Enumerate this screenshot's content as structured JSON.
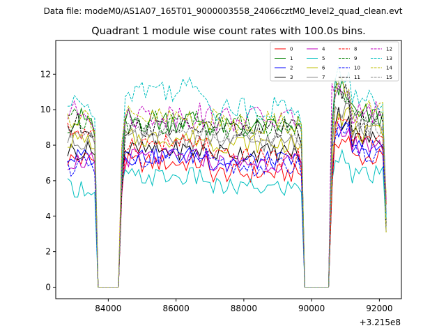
{
  "header": {
    "suptitle": "Data file: modeM0/AS1A07_165T01_9000003558_24066cztM0_level2_quad_clean.evt",
    "title": "Quadrant 1 module wise count rates with 100.0s bins."
  },
  "chart_data": {
    "type": "line",
    "title": "Quadrant 1 module wise count rates with 100.0s bins.",
    "xlabel": "",
    "ylabel": "",
    "x_offset_label": "+3.215e8",
    "x_offset": 321500000,
    "xlim": [
      82450,
      92650
    ],
    "ylim": [
      -0.65,
      13.9
    ],
    "xticks": [
      84000,
      86000,
      88000,
      90000,
      92000
    ],
    "xtick_labels": [
      "84000",
      "86000",
      "88000",
      "90000",
      "92000"
    ],
    "yticks": [
      0,
      2,
      4,
      6,
      8,
      10,
      12
    ],
    "ytick_labels": [
      "0",
      "2",
      "4",
      "6",
      "8",
      "10",
      "12"
    ],
    "grid": false,
    "legend_position": "top-right",
    "legend_columns": 4,
    "time_range": [
      82800,
      92200
    ],
    "bin_size": 100,
    "gaps": [
      [
        83700,
        84400
      ],
      [
        89800,
        90600
      ]
    ],
    "series": [
      {
        "name": "0",
        "color": "#ff0000",
        "dashed": false,
        "levels": [
          7.2,
          7.0,
          6.4,
          8.3,
          7.3
        ]
      },
      {
        "name": "1",
        "color": "#008000",
        "dashed": false,
        "levels": [
          9.4,
          9.4,
          9.0,
          11.2,
          9.6
        ]
      },
      {
        "name": "2",
        "color": "#0000ff",
        "dashed": false,
        "levels": [
          7.3,
          7.4,
          7.1,
          9.0,
          7.8
        ]
      },
      {
        "name": "3",
        "color": "#000000",
        "dashed": false,
        "levels": [
          7.7,
          7.7,
          7.6,
          9.6,
          8.3
        ]
      },
      {
        "name": "4",
        "color": "#bf00bf",
        "dashed": false,
        "levels": [
          7.1,
          7.3,
          7.0,
          8.8,
          8.0
        ]
      },
      {
        "name": "5",
        "color": "#00bfbf",
        "dashed": false,
        "levels": [
          5.6,
          6.2,
          5.6,
          7.5,
          6.3
        ]
      },
      {
        "name": "6",
        "color": "#bfbf00",
        "dashed": false,
        "levels": [
          8.3,
          8.4,
          8.1,
          9.8,
          8.6
        ]
      },
      {
        "name": "7",
        "color": "#808080",
        "dashed": false,
        "levels": [
          8.3,
          8.3,
          8.2,
          10.1,
          8.8
        ]
      },
      {
        "name": "8",
        "color": "#ff0000",
        "dashed": true,
        "levels": [
          8.8,
          8.1,
          7.3,
          9.3,
          8.3
        ]
      },
      {
        "name": "9",
        "color": "#008000",
        "dashed": true,
        "levels": [
          9.3,
          9.2,
          9.1,
          11.1,
          9.4
        ]
      },
      {
        "name": "10",
        "color": "#0000ff",
        "dashed": true,
        "levels": [
          6.8,
          7.3,
          6.8,
          8.8,
          7.5
        ]
      },
      {
        "name": "11",
        "color": "#000000",
        "dashed": true,
        "levels": [
          9.1,
          9.0,
          8.9,
          10.9,
          9.3
        ]
      },
      {
        "name": "12",
        "color": "#bf00bf",
        "dashed": true,
        "levels": [
          9.8,
          9.7,
          9.5,
          11.4,
          9.9
        ]
      },
      {
        "name": "13",
        "color": "#00bfbf",
        "dashed": true,
        "levels": [
          10.2,
          11.2,
          10.1,
          12.0,
          10.5
        ]
      },
      {
        "name": "14",
        "color": "#bfbf00",
        "dashed": true,
        "levels": [
          9.6,
          9.5,
          9.3,
          11.3,
          9.8
        ]
      },
      {
        "name": "15",
        "color": "#808080",
        "dashed": true,
        "levels": [
          8.6,
          8.8,
          8.6,
          10.7,
          9.2
        ]
      }
    ]
  }
}
